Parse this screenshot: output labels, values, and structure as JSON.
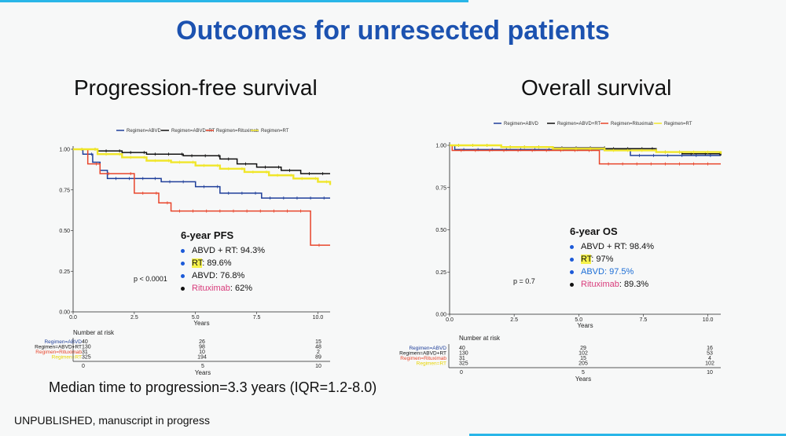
{
  "header": {
    "title": "Outcomes for unresected patients"
  },
  "legend_labels": [
    "Regimen=ABVD",
    "Regimen=ABVD+RT",
    "Regimen=Rituximab",
    "Regimen=RT"
  ],
  "colors": {
    "ABVD": "#1f3f9a",
    "ABVD+RT": "#111111",
    "Rituximab": "#e8452b",
    "RT": "#f0e62a",
    "highlight": "#f6f24a",
    "blue_text": "#1c6ed6",
    "pink_text": "#d83a7a"
  },
  "pfs": {
    "title": "Progression-free survival",
    "box": {
      "heading": "6-year PFS",
      "items": [
        {
          "name": "ABVD + RT",
          "value": ": 94.3%",
          "dot": "#1c5ad8"
        },
        {
          "name": "RT",
          "value": ": 89.6%",
          "dot": "#1c5ad8"
        },
        {
          "name": "ABVD",
          "value": ": 76.8%",
          "dot": "#1c5ad8"
        },
        {
          "name": "Rituximab",
          "value": ": 62%",
          "dot": "#111111"
        }
      ]
    },
    "pvalue": "p < 0.0001",
    "risk": {
      "title": "Number at risk",
      "rows": [
        {
          "label": "Regimen=ABVD",
          "values": [
            "40",
            "26",
            "15"
          ]
        },
        {
          "label": "Regimen=ABVD+RT",
          "values": [
            "130",
            "98",
            "48"
          ]
        },
        {
          "label": "Regimen=Rituximab",
          "values": [
            "31",
            "10",
            "2"
          ]
        },
        {
          "label": "Regimen=RT",
          "values": [
            "325",
            "194",
            "89"
          ]
        }
      ],
      "ticks": [
        "0",
        "5",
        "10"
      ],
      "xlabel": "Years"
    }
  },
  "os": {
    "title": "Overall survival",
    "box": {
      "heading": "6-year OS",
      "items": [
        {
          "name": "ABVD + RT",
          "value": ": 98.4%",
          "dot": "#1c5ad8"
        },
        {
          "name": "RT",
          "value": ": 97%",
          "dot": "#1c5ad8"
        },
        {
          "name": "ABVD",
          "value": ": 97.5%",
          "dot": "#1c5ad8"
        },
        {
          "name": "Rituximab",
          "value": ": 89.3%",
          "dot": "#111111"
        }
      ]
    },
    "pvalue": "p = 0.7",
    "risk": {
      "title": "Number at risk",
      "rows": [
        {
          "label": "Regimen=ABVD",
          "values": [
            "40",
            "29",
            "16"
          ]
        },
        {
          "label": "Regimen=ABVD+RT",
          "values": [
            "130",
            "102",
            "53"
          ]
        },
        {
          "label": "Regimen=Rituximab",
          "values": [
            "31",
            "15",
            "4"
          ]
        },
        {
          "label": "Regimen=RT",
          "values": [
            "325",
            "205",
            "102"
          ]
        }
      ],
      "ticks": [
        "0",
        "5",
        "10"
      ],
      "xlabel": "Years"
    }
  },
  "footer": {
    "median": "Median time to progression=3.3 years (IQR=1.2-8.0)",
    "note": "UNPUBLISHED, manuscript in progress"
  },
  "chart_data": [
    {
      "type": "line",
      "title": "Progression-free survival",
      "xlabel": "Years",
      "ylabel": "",
      "xlim": [
        0,
        10.5
      ],
      "ylim": [
        0,
        1
      ],
      "xticks": [
        "0.0",
        "2.5",
        "5.0",
        "7.5",
        "10.0"
      ],
      "yticks": [
        "0.00",
        "0.25",
        "0.50",
        "0.75",
        "1.00"
      ],
      "series": [
        {
          "name": "Regimen=ABVD",
          "color": "#1f3f9a",
          "points": [
            [
              0,
              1
            ],
            [
              0.4,
              0.97
            ],
            [
              0.8,
              0.92
            ],
            [
              1.1,
              0.87
            ],
            [
              1.4,
              0.82
            ],
            [
              3.0,
              0.82
            ],
            [
              3.6,
              0.8
            ],
            [
              5.0,
              0.77
            ],
            [
              6.0,
              0.73
            ],
            [
              7.7,
              0.7
            ],
            [
              10.5,
              0.7
            ]
          ]
        },
        {
          "name": "Regimen=ABVD+RT",
          "color": "#111111",
          "points": [
            [
              0,
              1
            ],
            [
              1.0,
              0.99
            ],
            [
              2.0,
              0.98
            ],
            [
              3.0,
              0.97
            ],
            [
              4.5,
              0.96
            ],
            [
              6.0,
              0.94
            ],
            [
              6.7,
              0.91
            ],
            [
              7.5,
              0.89
            ],
            [
              8.5,
              0.87
            ],
            [
              9.3,
              0.85
            ],
            [
              10.5,
              0.85
            ]
          ]
        },
        {
          "name": "Regimen=Rituximab",
          "color": "#e8452b",
          "points": [
            [
              0,
              1
            ],
            [
              0.6,
              0.91
            ],
            [
              1.1,
              0.85
            ],
            [
              2.0,
              0.85
            ],
            [
              2.5,
              0.73
            ],
            [
              3.5,
              0.67
            ],
            [
              4.0,
              0.62
            ],
            [
              9.6,
              0.62
            ],
            [
              9.7,
              0.41
            ],
            [
              10.5,
              0.41
            ]
          ]
        },
        {
          "name": "Regimen=RT",
          "color": "#f0e62a",
          "points": [
            [
              0,
              1
            ],
            [
              1.0,
              0.97
            ],
            [
              2.0,
              0.95
            ],
            [
              3.0,
              0.93
            ],
            [
              4.0,
              0.92
            ],
            [
              5.0,
              0.9
            ],
            [
              6.0,
              0.88
            ],
            [
              7.0,
              0.86
            ],
            [
              8.0,
              0.84
            ],
            [
              9.0,
              0.82
            ],
            [
              10.0,
              0.8
            ],
            [
              10.5,
              0.78
            ]
          ]
        }
      ]
    },
    {
      "type": "line",
      "title": "Overall survival",
      "xlabel": "Years",
      "ylabel": "",
      "xlim": [
        0,
        10.5
      ],
      "ylim": [
        0,
        1
      ],
      "xticks": [
        "0.0",
        "2.5",
        "5.0",
        "7.5",
        "10.0"
      ],
      "yticks": [
        "0.00",
        "0.25",
        "0.50",
        "0.75",
        "1.00"
      ],
      "series": [
        {
          "name": "Regimen=ABVD",
          "color": "#1f3f9a",
          "points": [
            [
              0,
              1
            ],
            [
              0.2,
              0.975
            ],
            [
              6.5,
              0.975
            ],
            [
              7.0,
              0.94
            ],
            [
              10.5,
              0.94
            ]
          ]
        },
        {
          "name": "Regimen=ABVD+RT",
          "color": "#111111",
          "points": [
            [
              0,
              1
            ],
            [
              2.0,
              0.99
            ],
            [
              4.0,
              0.985
            ],
            [
              6.0,
              0.98
            ],
            [
              7.5,
              0.98
            ],
            [
              8.0,
              0.96
            ],
            [
              9.0,
              0.95
            ],
            [
              10.5,
              0.94
            ]
          ]
        },
        {
          "name": "Regimen=Rituximab",
          "color": "#e8452b",
          "points": [
            [
              0,
              1
            ],
            [
              0.1,
              0.97
            ],
            [
              5.7,
              0.97
            ],
            [
              5.8,
              0.89
            ],
            [
              10.5,
              0.89
            ]
          ]
        },
        {
          "name": "Regimen=RT",
          "color": "#f0e62a",
          "points": [
            [
              0,
              1
            ],
            [
              2.0,
              0.99
            ],
            [
              4.0,
              0.98
            ],
            [
              6.0,
              0.97
            ],
            [
              8.0,
              0.96
            ],
            [
              10.5,
              0.95
            ]
          ]
        }
      ]
    }
  ]
}
